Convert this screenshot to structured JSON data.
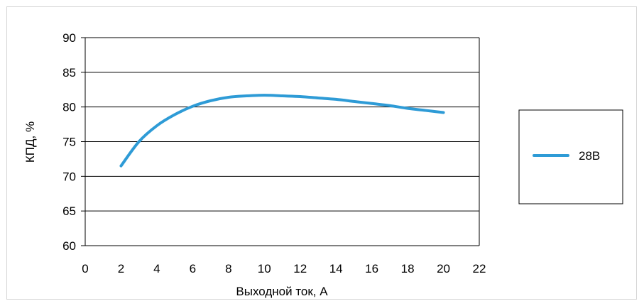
{
  "chart_data": {
    "type": "line",
    "xlabel": "Выходной ток, А",
    "ylabel": "КПД, %",
    "xlim": [
      0,
      22
    ],
    "ylim": [
      60,
      90
    ],
    "x_ticks": [
      "0",
      "2",
      "4",
      "6",
      "8",
      "10",
      "12",
      "14",
      "16",
      "18",
      "20",
      "22"
    ],
    "y_ticks": [
      "60",
      "65",
      "70",
      "75",
      "80",
      "85",
      "90"
    ],
    "grid": "horizontal",
    "legend_position": "right",
    "series": [
      {
        "name": "28В",
        "color": "#2e9bd6",
        "x": [
          2,
          3,
          4,
          5,
          6,
          7,
          8,
          9,
          10,
          11,
          12,
          13,
          14,
          15,
          16,
          17,
          18,
          19,
          20
        ],
        "y": [
          71.5,
          75.0,
          77.3,
          78.9,
          80.1,
          80.9,
          81.4,
          81.6,
          81.7,
          81.6,
          81.5,
          81.3,
          81.1,
          80.8,
          80.5,
          80.2,
          79.8,
          79.5,
          79.2
        ]
      }
    ]
  }
}
